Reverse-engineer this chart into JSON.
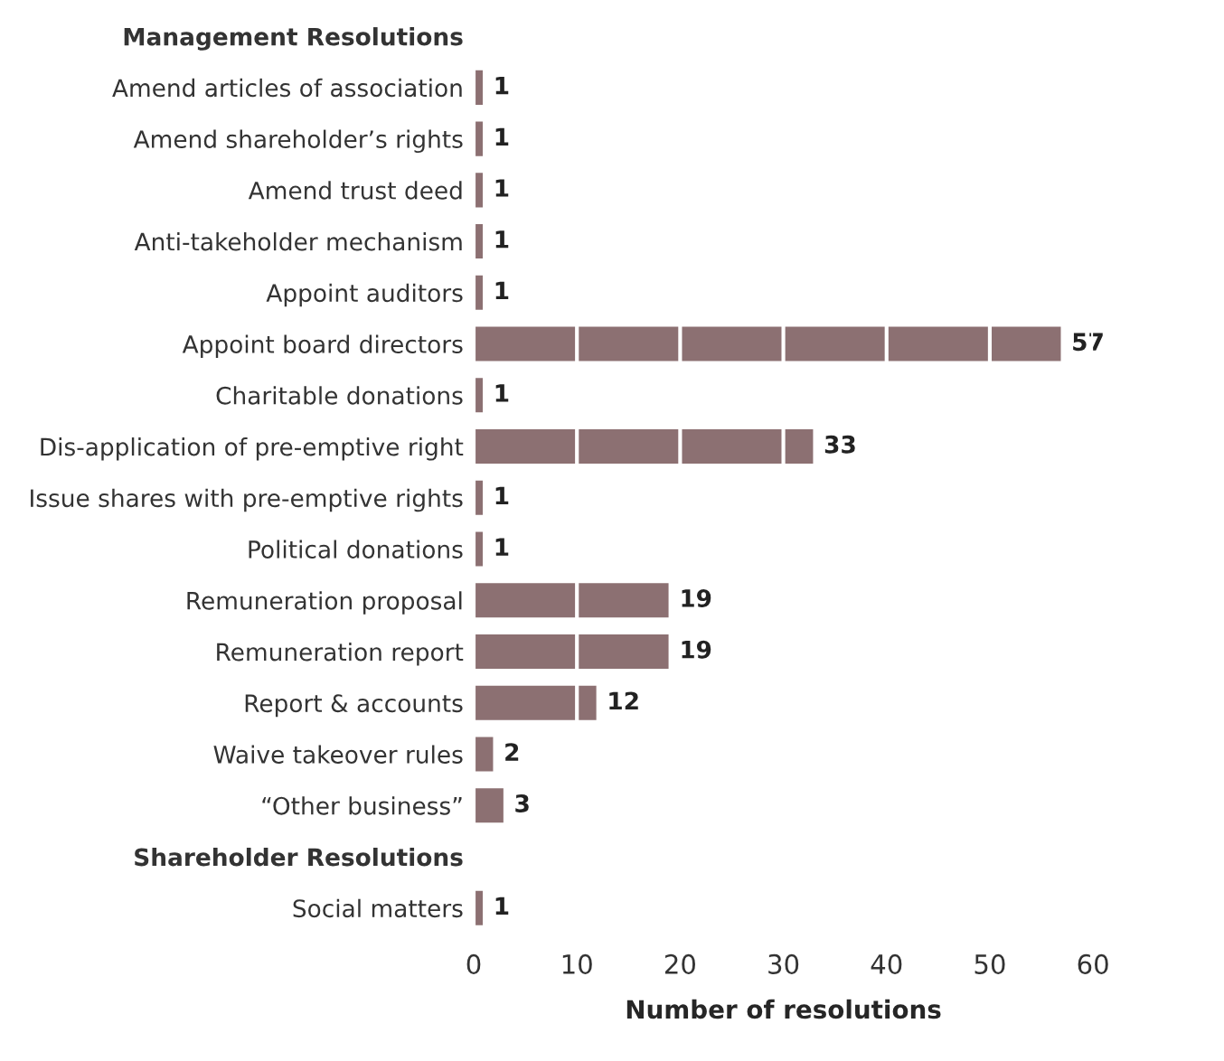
{
  "chart_data": {
    "type": "bar",
    "orientation": "horizontal",
    "xlabel": "Number of resolutions",
    "categories": [
      "Management Resolutions",
      "Amend articles of association",
      "Amend shareholder’s rights",
      "Amend trust deed",
      "Anti-takeholder mechanism",
      "Appoint auditors",
      "Appoint board directors",
      "Charitable donations",
      "Dis-application of pre-emptive right",
      "Issue shares with pre-emptive rights",
      "Political donations",
      "Remuneration proposal",
      "Remuneration report",
      "Report & accounts",
      "Waive takeover rules",
      "“Other business”",
      "Shareholder Resolutions",
      "Social matters"
    ],
    "values": [
      null,
      1,
      1,
      1,
      1,
      1,
      57,
      1,
      33,
      1,
      1,
      19,
      19,
      12,
      2,
      3,
      null,
      1
    ],
    "color": "#8c7072",
    "xlim": [
      0,
      60
    ],
    "xticks": [
      0,
      10,
      20,
      30,
      40,
      50,
      60
    ],
    "grid": "x",
    "data_labels": true
  }
}
